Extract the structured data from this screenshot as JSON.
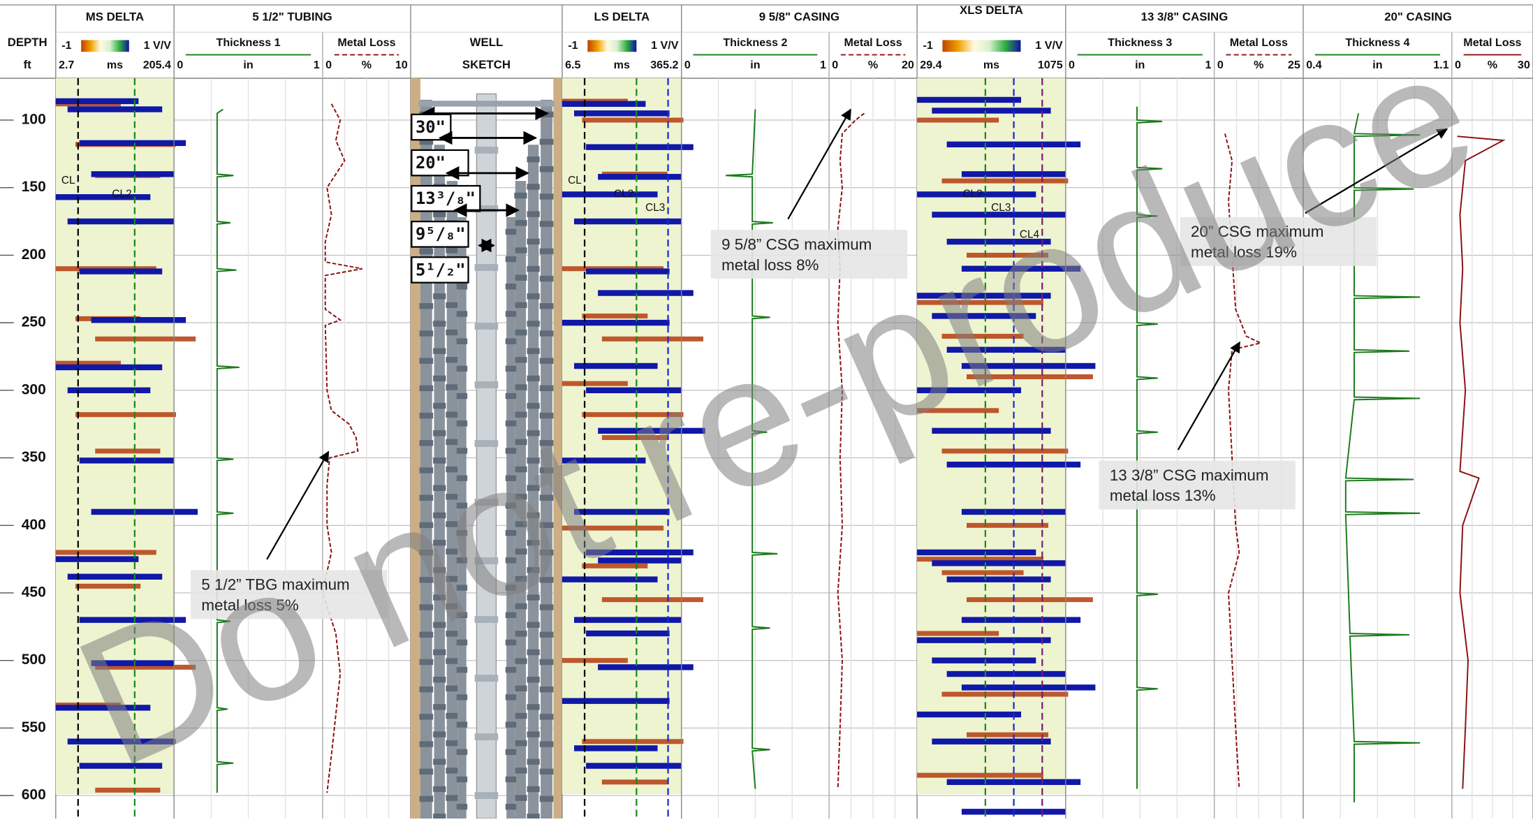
{
  "depth_label": "DEPTH",
  "depth_unit": "ft",
  "depth_range": [
    69,
    617
  ],
  "depth_ticks": [
    100,
    150,
    200,
    250,
    300,
    350,
    400,
    450,
    500,
    550,
    600
  ],
  "watermark": "Do not re-produce",
  "tracks": [
    {
      "type": "delta",
      "title": "MS DELTA",
      "scale_min": -1,
      "scale_max": "1 V/V",
      "axis_min": 2.7,
      "unit": "ms",
      "axis_max": 205.4,
      "centerlines": [
        {
          "label": "CL",
          "value": 41,
          "color": "#000000",
          "label_depth": 145
        },
        {
          "label": "CL2",
          "value": 138,
          "color": "#1a8a1a",
          "label_depth": 155
        }
      ],
      "blue_bands": [
        86,
        92,
        117,
        140,
        157,
        175,
        212,
        248,
        283,
        300,
        352,
        390,
        425,
        438,
        470,
        502,
        535,
        560,
        578
      ],
      "red_bands": [
        88,
        118,
        141,
        210,
        247,
        262,
        280,
        318,
        345,
        420,
        445,
        505,
        533,
        560,
        596
      ]
    },
    {
      "type": "curves",
      "title": "5 1/2\" TUBING",
      "curves": [
        {
          "name": "Thickness 1",
          "min": 0,
          "unit": "in",
          "max": 1,
          "color": "#1a7a1a",
          "dashed": false,
          "depths": [
            92,
            95,
            140,
            141,
            142,
            175,
            176,
            177,
            210,
            211,
            212,
            282,
            283,
            284,
            350,
            351,
            352,
            390,
            391,
            392,
            470,
            471,
            472,
            535,
            536,
            537,
            575,
            576,
            577,
            598
          ],
          "values": [
            0.33,
            0.29,
            0.29,
            0.4,
            0.29,
            0.29,
            0.38,
            0.29,
            0.29,
            0.42,
            0.29,
            0.29,
            0.44,
            0.29,
            0.29,
            0.4,
            0.29,
            0.29,
            0.4,
            0.29,
            0.29,
            0.38,
            0.29,
            0.29,
            0.36,
            0.29,
            0.29,
            0.4,
            0.29,
            0.29
          ]
        },
        {
          "name": "Metal Loss",
          "min": 0,
          "unit": "%",
          "max": 10,
          "color": "#8b1010",
          "dashed": true,
          "depths": [
            88,
            100,
            115,
            130,
            150,
            170,
            190,
            205,
            210,
            215,
            240,
            248,
            252,
            300,
            315,
            325,
            335,
            345,
            350,
            370,
            400,
            420,
            440,
            450,
            480,
            510,
            540,
            570,
            598
          ],
          "values": [
            1,
            2,
            1.5,
            2.5,
            0.5,
            1,
            0.3,
            0.3,
            4.5,
            0.3,
            0.3,
            2,
            0.3,
            0.5,
            1,
            3,
            3.8,
            4,
            0.8,
            0.5,
            0.5,
            1,
            0.3,
            0,
            1.5,
            2,
            1.5,
            1,
            0.5
          ]
        }
      ]
    },
    {
      "type": "well",
      "title": "WELL",
      "subtitle": "SKETCH",
      "strings": [
        "30\"",
        "20\"",
        "13³/₈\"",
        "9⁵/₈\"",
        "5¹/₂\""
      ]
    },
    {
      "type": "delta",
      "title": "LS DELTA",
      "scale_min": -1,
      "scale_max": "1 V/V",
      "axis_min": 6.5,
      "unit": "ms",
      "axis_max": 365.2,
      "centerlines": [
        {
          "label": "CL",
          "value": 74,
          "color": "#000000",
          "label_depth": 145
        },
        {
          "label": "CL2",
          "value": 230,
          "color": "#1a8a1a",
          "label_depth": 155
        },
        {
          "label": "CL3",
          "value": 325,
          "color": "#1a2ad0",
          "label_depth": 165
        }
      ],
      "blue_bands": [
        88,
        95,
        120,
        142,
        155,
        175,
        212,
        228,
        250,
        282,
        300,
        330,
        352,
        390,
        420,
        426,
        440,
        470,
        480,
        505,
        530,
        565,
        578
      ],
      "red_bands": [
        86,
        100,
        140,
        210,
        245,
        262,
        295,
        318,
        335,
        402,
        430,
        455,
        500,
        560,
        590
      ]
    },
    {
      "type": "curves",
      "title": "9 5/8\" CASING",
      "curves": [
        {
          "name": "Thickness 2",
          "min": 0,
          "unit": "in",
          "max": 1,
          "color": "#1a7a1a",
          "dashed": false,
          "depths": [
            92,
            140,
            141,
            142,
            175,
            176,
            177,
            245,
            246,
            247,
            330,
            331,
            332,
            420,
            421,
            422,
            475,
            476,
            477,
            565,
            566,
            567,
            595
          ],
          "values": [
            0.5,
            0.48,
            0.3,
            0.48,
            0.48,
            0.62,
            0.48,
            0.48,
            0.6,
            0.48,
            0.48,
            0.58,
            0.48,
            0.48,
            0.65,
            0.48,
            0.48,
            0.6,
            0.48,
            0.48,
            0.6,
            0.48,
            0.5
          ]
        },
        {
          "name": "Metal Loss",
          "min": 0,
          "unit": "%",
          "max": 20,
          "color": "#8b1010",
          "dashed": true,
          "depths": [
            95,
            100,
            110,
            130,
            150,
            180,
            210,
            250,
            300,
            350,
            400,
            450,
            500,
            550,
            595
          ],
          "values": [
            8,
            6,
            3,
            2.5,
            3,
            2,
            2.5,
            2,
            3,
            2.5,
            3,
            2,
            3,
            2.5,
            2
          ]
        }
      ]
    },
    {
      "type": "delta",
      "title": "XLS DELTA",
      "scale_min": -1,
      "scale_max": "1 V/V",
      "axis_min": 29.4,
      "unit": "ms",
      "axis_max": 1075,
      "centerlines": [
        {
          "label": "CL2",
          "value": 510,
          "color": "#1a8a1a",
          "label_depth": 155
        },
        {
          "label": "CL3",
          "value": 710,
          "color": "#1a2ad0",
          "label_depth": 165
        },
        {
          "label": "CL4",
          "value": 910,
          "color": "#7a1a7a",
          "label_depth": 185
        }
      ],
      "blue_bands": [
        85,
        93,
        118,
        140,
        155,
        170,
        190,
        210,
        230,
        245,
        270,
        282,
        300,
        330,
        355,
        390,
        420,
        428,
        440,
        470,
        485,
        500,
        510,
        520,
        540,
        560,
        590,
        612
      ],
      "red_bands": [
        100,
        145,
        200,
        235,
        260,
        290,
        315,
        345,
        400,
        425,
        435,
        455,
        480,
        525,
        555,
        585
      ]
    },
    {
      "type": "curves",
      "title": "13 3/8\" CASING",
      "curves": [
        {
          "name": "Thickness 3",
          "min": 0,
          "unit": "in",
          "max": 1,
          "color": "#1a7a1a",
          "dashed": false,
          "depths": [
            90,
            100,
            101,
            102,
            135,
            136,
            137,
            170,
            171,
            172,
            250,
            251,
            252,
            290,
            291,
            292,
            330,
            331,
            332,
            380,
            381,
            382,
            450,
            451,
            452,
            520,
            521,
            522,
            595
          ],
          "values": [
            0.48,
            0.48,
            0.65,
            0.48,
            0.48,
            0.65,
            0.48,
            0.48,
            0.62,
            0.48,
            0.48,
            0.62,
            0.48,
            0.48,
            0.62,
            0.48,
            0.48,
            0.62,
            0.48,
            0.48,
            0.62,
            0.48,
            0.48,
            0.62,
            0.48,
            0.48,
            0.62,
            0.48,
            0.48
          ]
        },
        {
          "name": "Metal Loss",
          "min": 0,
          "unit": "%",
          "max": 25,
          "color": "#8b1010",
          "dashed": true,
          "depths": [
            110,
            130,
            160,
            200,
            240,
            260,
            265,
            270,
            300,
            350,
            400,
            420,
            450,
            500,
            550,
            595
          ],
          "values": [
            3,
            5,
            4,
            5,
            6,
            9,
            13,
            5,
            4,
            5,
            6,
            7,
            4,
            5,
            6,
            7
          ]
        }
      ]
    },
    {
      "type": "curves",
      "title": "20\" CASING",
      "curves": [
        {
          "name": "Thickness 4",
          "min": 0.4,
          "unit": "in",
          "max": 1.1,
          "color": "#1a7a1a",
          "dashed": false,
          "depths": [
            95,
            110,
            111,
            112,
            150,
            151,
            152,
            230,
            231,
            232,
            270,
            271,
            272,
            305,
            306,
            307,
            365,
            366,
            367,
            390,
            391,
            392,
            480,
            481,
            482,
            560,
            561,
            562,
            605
          ],
          "values": [
            0.66,
            0.64,
            0.95,
            0.64,
            0.64,
            0.92,
            0.64,
            0.64,
            0.95,
            0.64,
            0.64,
            0.9,
            0.64,
            0.64,
            0.95,
            0.64,
            0.6,
            0.92,
            0.6,
            0.6,
            0.95,
            0.6,
            0.62,
            0.9,
            0.62,
            0.64,
            0.95,
            0.64,
            0.64
          ]
        },
        {
          "name": "Metal Loss",
          "min": 0,
          "unit": "%",
          "max": 30,
          "color": "#8b1010",
          "dashed": false,
          "depths": [
            112,
            115,
            130,
            170,
            210,
            250,
            300,
            360,
            365,
            400,
            450,
            500,
            550,
            595
          ],
          "values": [
            2,
            19,
            5,
            3,
            4,
            3,
            5,
            3,
            10,
            4,
            3,
            6,
            5,
            4
          ]
        }
      ]
    }
  ],
  "annotations": [
    {
      "lines": [
        "5 1/2” TBG maximum",
        "metal loss 5%"
      ]
    },
    {
      "lines": [
        "9 5/8” CSG maximum",
        "metal loss 8%"
      ]
    },
    {
      "lines": [
        "20” CSG maximum",
        "metal loss 19%"
      ]
    },
    {
      "lines": [
        "13 3/8” CSG maximum",
        "metal loss 13%"
      ]
    }
  ]
}
